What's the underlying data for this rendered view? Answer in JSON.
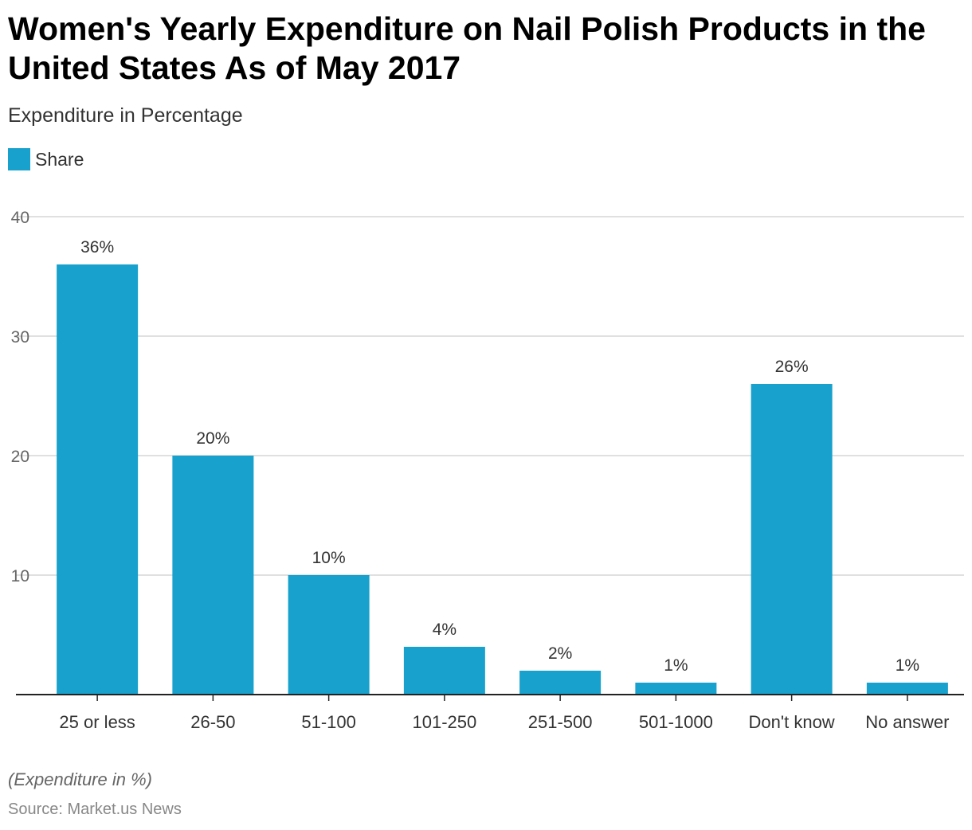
{
  "chart_data": {
    "type": "bar",
    "title": "Women's Yearly Expenditure on Nail Polish Products in the United States As of May 2017",
    "subtitle": "Expenditure in Percentage",
    "legend": [
      "Share"
    ],
    "legend_position": "top-left",
    "categories": [
      "25 or less",
      "26-50",
      "51-100",
      "101-250",
      "251-500",
      "501-1000",
      "Don't know",
      "No answer"
    ],
    "values": [
      36,
      20,
      10,
      4,
      2,
      1,
      26,
      1
    ],
    "data_labels": [
      "36%",
      "20%",
      "10%",
      "4%",
      "2%",
      "1%",
      "26%",
      "1%"
    ],
    "yticks": [
      10,
      20,
      30,
      40
    ],
    "ylim": [
      0,
      40
    ],
    "grid": true,
    "xlabel": "",
    "ylabel": "",
    "color": "#18a1cd",
    "note": "(Expenditure in %)",
    "source": "Source: Market.us News"
  }
}
